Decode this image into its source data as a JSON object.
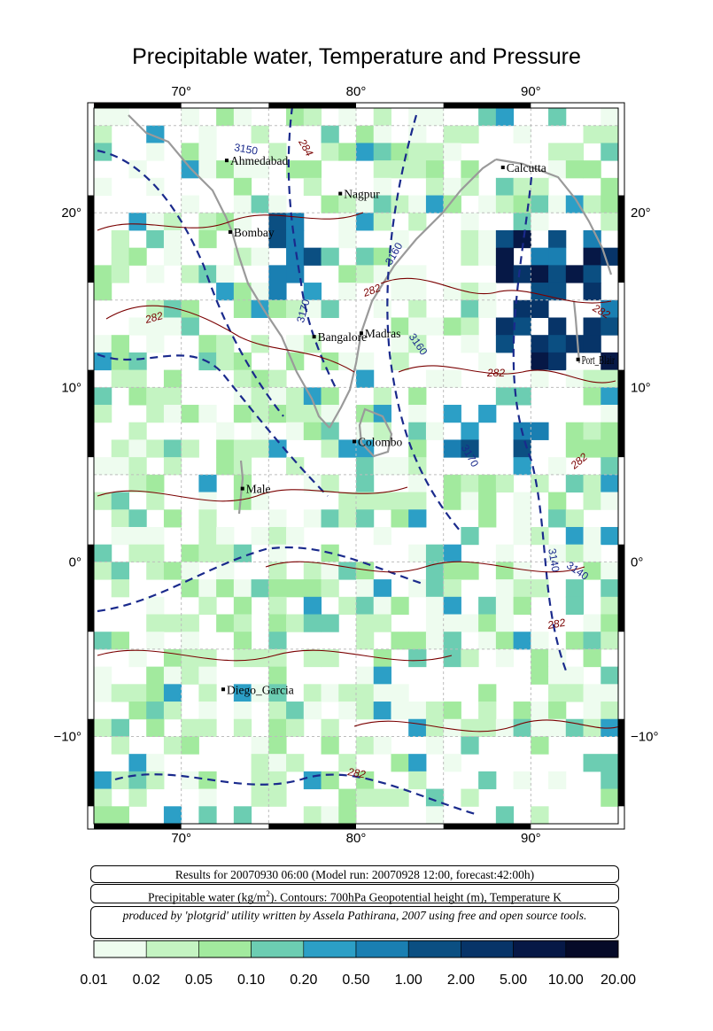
{
  "title": "Precipitable water, Temperature and Pressure",
  "map": {
    "lon_range": [
      65,
      95
    ],
    "lat_range": [
      -15,
      26
    ],
    "lon_ticks": [
      {
        "value": 70,
        "label": "70°"
      },
      {
        "value": 80,
        "label": "80°"
      },
      {
        "value": 90,
        "label": "90°"
      }
    ],
    "lat_ticks": [
      {
        "value": 20,
        "label": "20°"
      },
      {
        "value": 10,
        "label": "10°"
      },
      {
        "value": 0,
        "label": "0°"
      },
      {
        "value": -10,
        "label": "−10°"
      }
    ],
    "cities": [
      {
        "name": "Ahmedabad",
        "lon": 72.6,
        "lat": 23.0
      },
      {
        "name": "Nagpur",
        "lon": 79.1,
        "lat": 21.1
      },
      {
        "name": "Calcutta",
        "lon": 88.4,
        "lat": 22.6
      },
      {
        "name": "Bombay",
        "lon": 72.8,
        "lat": 18.9
      },
      {
        "name": "Bangalore",
        "lon": 77.6,
        "lat": 12.9
      },
      {
        "name": "Madras",
        "lon": 80.3,
        "lat": 13.1
      },
      {
        "name": "Port_Blair",
        "lon": 92.7,
        "lat": 11.6
      },
      {
        "name": "Colombo",
        "lon": 79.9,
        "lat": 6.9
      },
      {
        "name": "Male",
        "lon": 73.5,
        "lat": 4.2
      },
      {
        "name": "Diego_Garcia",
        "lon": 72.4,
        "lat": -7.3
      }
    ],
    "contour_labels_geopotential": [
      "3150",
      "3160",
      "3170",
      "3140"
    ],
    "contour_labels_temperature": [
      "284",
      "282"
    ]
  },
  "info": {
    "results_line": "Results for 20070930 06:00 (Model run: 20070928 12:00, forecast:42:00h)",
    "legend_line_a": "Precipitable water (kg/m",
    "legend_line_sup": "2",
    "legend_line_b": ").  Contours: 700hPa Geopotential height (m), Temperature K",
    "credit_line": "produced by 'plotgrid' utility written by Assela Pathirana, 2007 using free and open source tools."
  },
  "colorbar": {
    "colors": [
      "#eefcef",
      "#c4f4c2",
      "#a2ea9e",
      "#6ccdb2",
      "#2c9fc6",
      "#1a7fb2",
      "#0b4f82",
      "#073468",
      "#061846",
      "#050a28",
      "#020410"
    ],
    "labels": [
      "0.01",
      "0.02",
      "0.05",
      "0.10",
      "0.20",
      "0.50",
      "1.00",
      "2.00",
      "5.00",
      "10.00",
      "20.00"
    ]
  }
}
